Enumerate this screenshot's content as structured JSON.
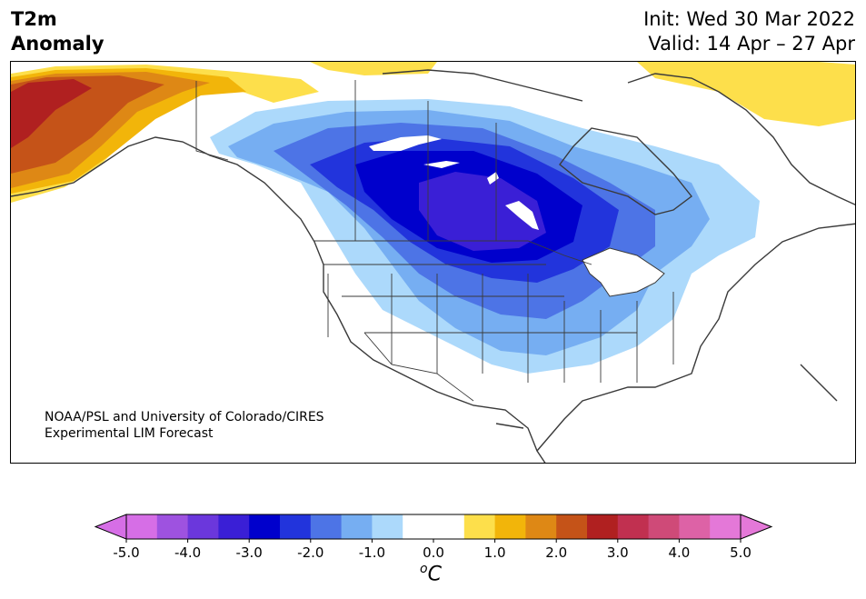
{
  "title": {
    "variable": "T2m",
    "subvariable": "Anomaly",
    "init": "Init: Wed 30 Mar 2022",
    "valid": "Valid: 14 Apr – 27 Apr"
  },
  "credit": {
    "line1": "NOAA/PSL and University of Colorado/CIRES",
    "line2": "Experimental LIM Forecast"
  },
  "colorbar": {
    "unit_symbol": "C",
    "unit_prefix": "o",
    "ticks": [
      "-5.0",
      "-4.0",
      "-3.0",
      "-2.0",
      "-1.0",
      "0.0",
      "1.0",
      "2.0",
      "3.0",
      "4.0",
      "5.0"
    ],
    "colors": [
      "#d66ee6",
      "#9e52e0",
      "#6b37dc",
      "#3a1fd6",
      "#0000cc",
      "#2234dc",
      "#4d74e6",
      "#76aef2",
      "#acd9fb",
      "#ffffff",
      "#ffffff",
      "#fddf4b",
      "#f2b50a",
      "#de8815",
      "#c55318",
      "#b02020",
      "#c13050",
      "#cf4a78",
      "#dd62a6",
      "#e478d8"
    ],
    "extend_colors": {
      "low": "#d66ee6",
      "high": "#e478d8"
    }
  },
  "map": {
    "region": "North America",
    "anomaly_regions": [
      {
        "name": "alaska-warm",
        "level": "+3.0 to +3.5"
      },
      {
        "name": "canada-cold-core",
        "level": "-3.0 to -3.5"
      },
      {
        "name": "greenland-warm",
        "level": "+0.5 to +1.0"
      }
    ]
  }
}
